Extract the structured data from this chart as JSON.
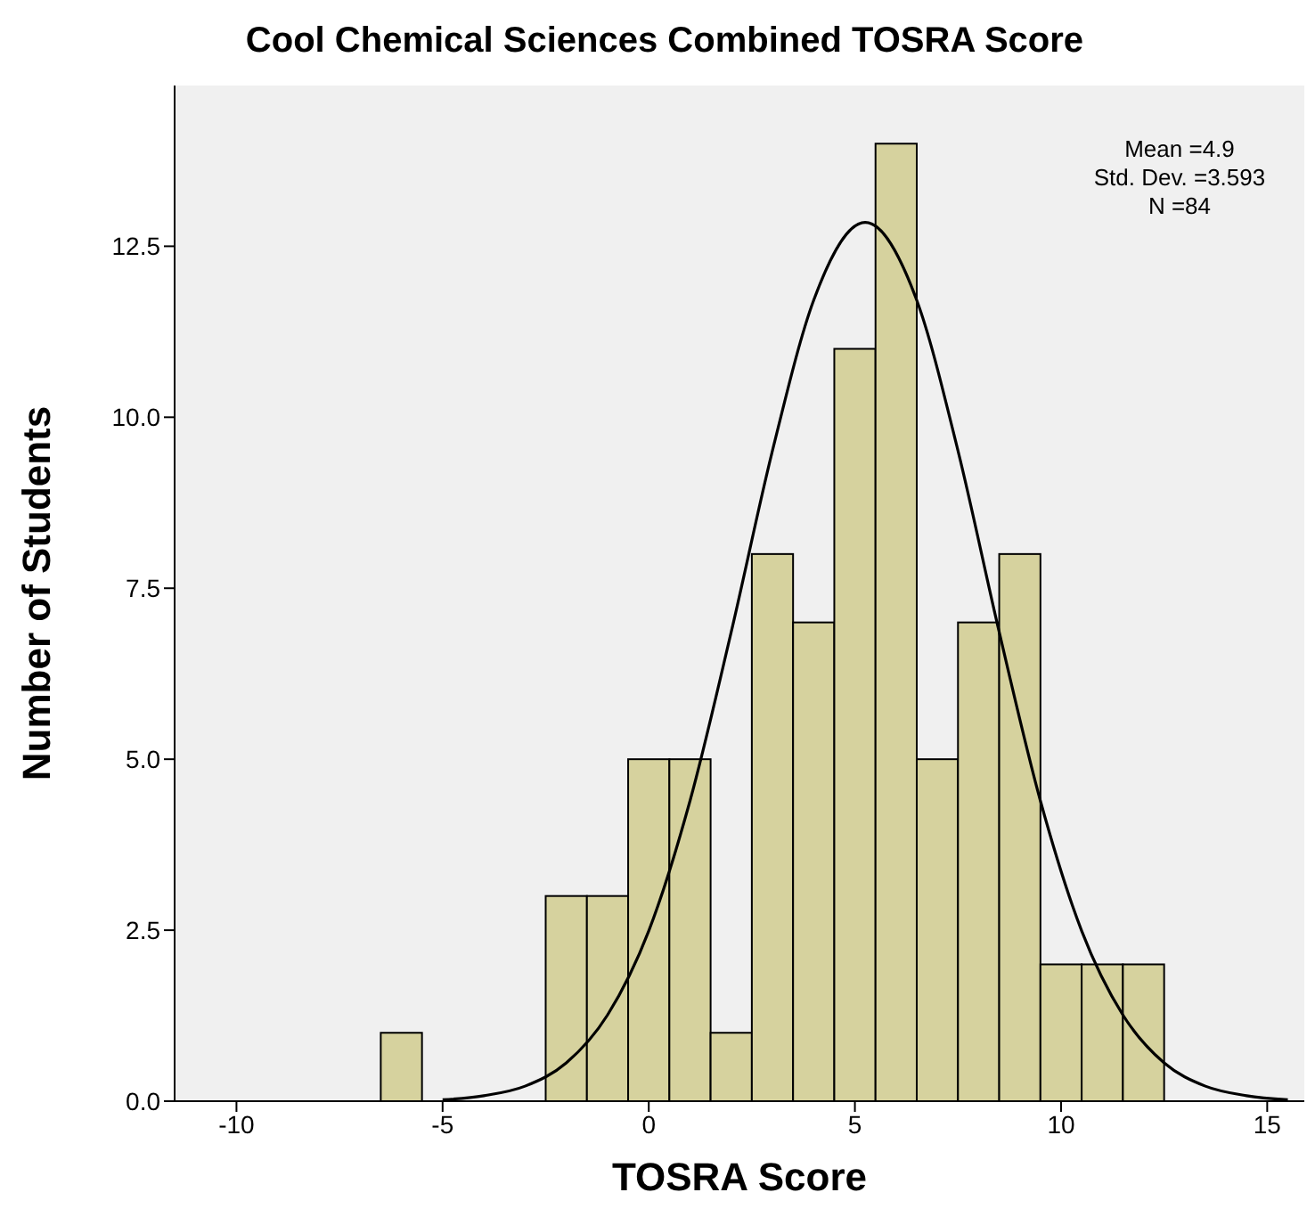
{
  "chart_data": {
    "type": "histogram",
    "title": "Cool Chemical Sciences Combined TOSRA Score",
    "xlabel": "TOSRA Score",
    "ylabel": "Number of Students",
    "bins": [
      -6.5,
      -5.5,
      -4.5,
      -3.5,
      -2.5,
      -1.5,
      -0.5,
      0.5,
      1.5,
      2.5,
      3.5,
      4.5,
      5.5,
      6.5,
      7.5,
      8.5,
      9.5,
      10.5,
      11.5,
      12.5
    ],
    "series": [
      {
        "color": "#d6d29e",
        "values": [
          1,
          0,
          0,
          0,
          3,
          3,
          5,
          5,
          1,
          8,
          7,
          11,
          14,
          5,
          7,
          8,
          2,
          2,
          2
        ]
      },
      {
        "type": "line",
        "color": "#000000",
        "x": [
          -5,
          -4,
          -3,
          -2,
          -1,
          0,
          1,
          2,
          3,
          4,
          5.25,
          6.5,
          7.5,
          8.5,
          9.5,
          10.5,
          11.5,
          12.5,
          13.5,
          14.5,
          15.5
        ],
        "values": [
          0.02,
          0.08,
          0.22,
          0.56,
          1.26,
          2.49,
          4.39,
          6.86,
          9.51,
          11.71,
          12.85,
          11.71,
          9.51,
          6.86,
          4.39,
          2.49,
          1.26,
          0.56,
          0.22,
          0.08,
          0.02
        ]
      }
    ],
    "xlim": [
      -11.5,
      15.9
    ],
    "xticks": [
      -10,
      -5,
      0,
      5,
      10,
      15
    ],
    "ylim": [
      0,
      14.85
    ],
    "yticks": [
      {
        "value": 0,
        "label": "0.0"
      },
      {
        "value": 2.5,
        "label": "2.5"
      },
      {
        "value": 5,
        "label": "5.0"
      },
      {
        "value": 7.5,
        "label": "7.5"
      },
      {
        "value": 10,
        "label": "10.0"
      },
      {
        "value": 12.5,
        "label": "12.5"
      }
    ],
    "annotations": [
      "Mean =4.9",
      "Std. Dev. =3.593",
      "N =84"
    ],
    "marker": "none",
    "grid": false
  }
}
